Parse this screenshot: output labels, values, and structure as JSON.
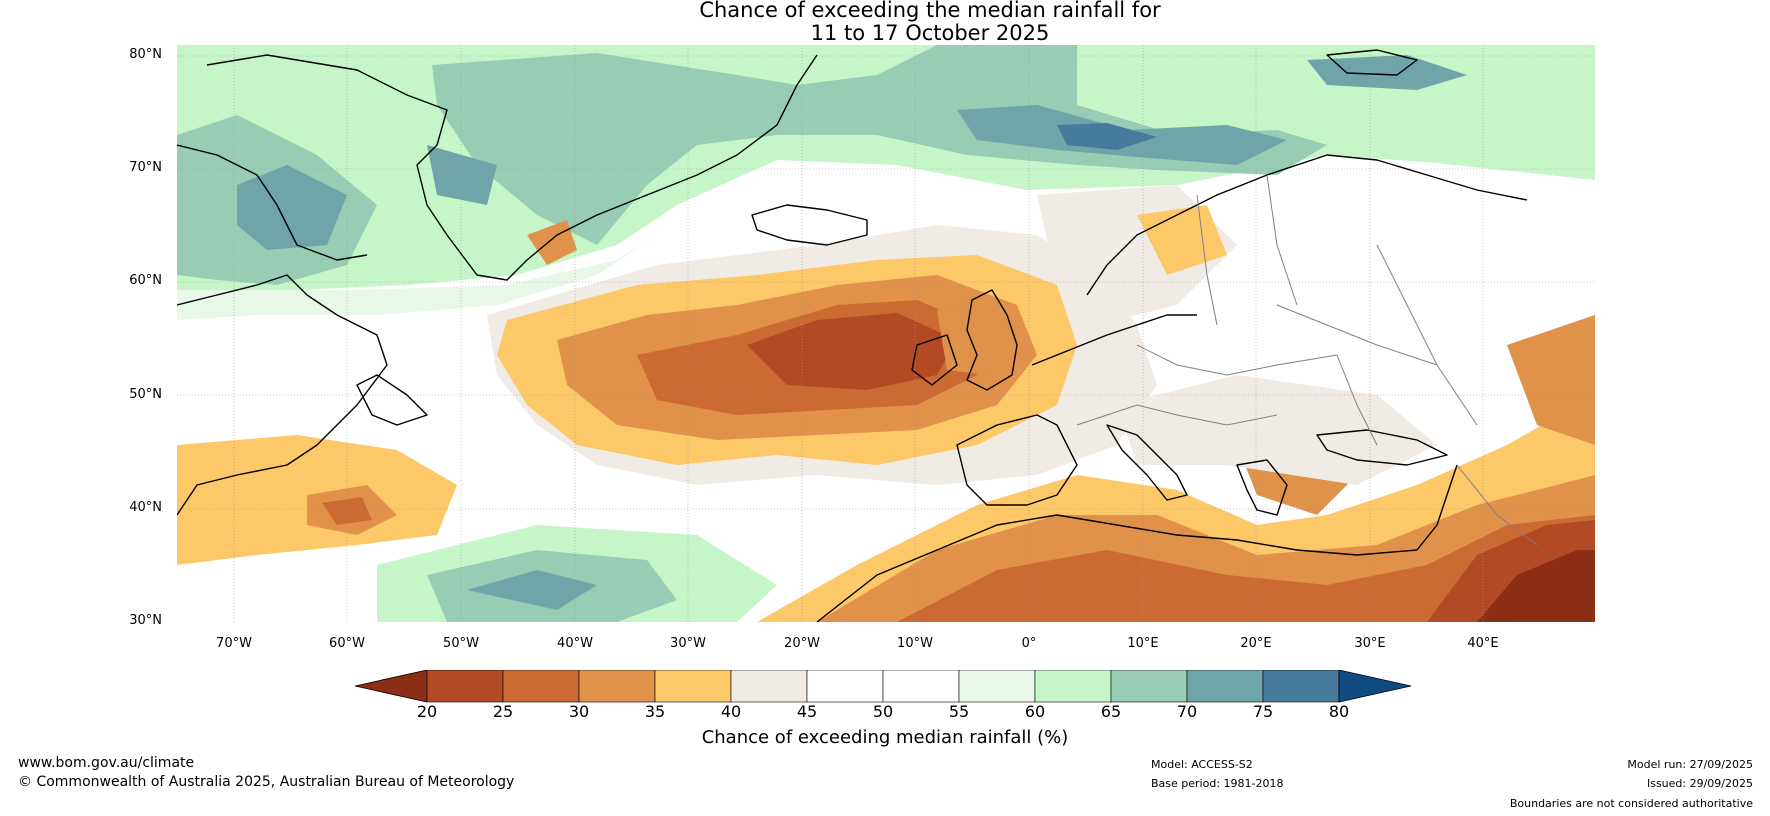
{
  "title": {
    "line1": "Chance of exceeding the median rainfall for",
    "line2": "11 to 17 October 2025"
  },
  "axes": {
    "lat_labels": [
      "80°N",
      "70°N",
      "60°N",
      "50°N",
      "40°N",
      "30°N"
    ],
    "lon_labels": [
      "70°W",
      "60°W",
      "50°W",
      "40°W",
      "30°W",
      "20°W",
      "10°W",
      "0°",
      "10°E",
      "20°E",
      "30°E",
      "40°E"
    ],
    "lat_range": [
      30,
      81
    ],
    "lon_range": [
      -75,
      50
    ]
  },
  "colorbar": {
    "label": "Chance of exceeding median rainfall (%)",
    "ticks": [
      "20",
      "25",
      "30",
      "35",
      "40",
      "45",
      "50",
      "55",
      "60",
      "65",
      "70",
      "75",
      "80"
    ],
    "colors": [
      "#8c2d16",
      "#b34a24",
      "#cc6a33",
      "#e0914a",
      "#fdc867",
      "#f1ebe6",
      "#ffffff",
      "#ffffff",
      "#e7f7e8",
      "#c6f6c8",
      "#98ccb4",
      "#6fa5a8",
      "#467b9c",
      "#0f4a80"
    ]
  },
  "footer": {
    "website": "www.bom.gov.au/climate",
    "copyright": "© Commonwealth of Australia 2025, Australian Bureau of Meteorology",
    "model": "Model: ACCESS-S2",
    "base_period": "Base period: 1981-2018",
    "model_run": "Model run: 27/09/2025",
    "issued": "Issued: 29/09/2025",
    "disclaimer": "Boundaries are not considered authoritative"
  },
  "palette": {
    "land_border": "#000000",
    "country_border": "#808080",
    "grid": "#9a9a9a"
  }
}
